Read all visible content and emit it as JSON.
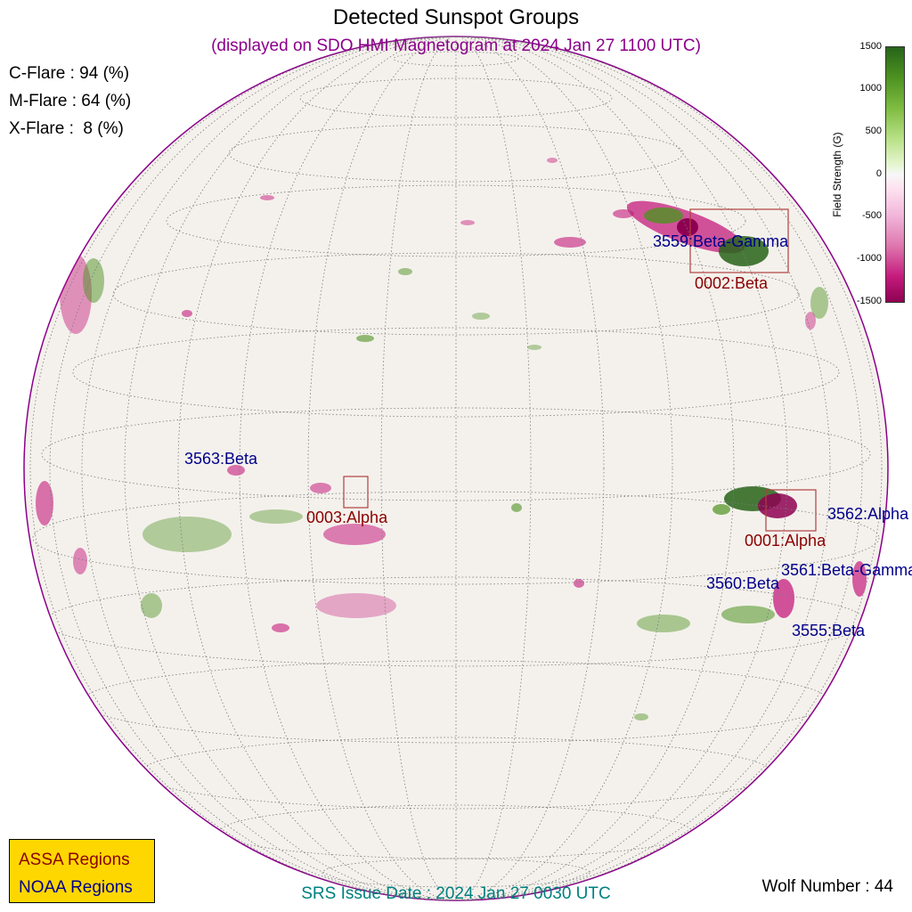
{
  "title": "Detected Sunspot Groups",
  "subtitle": "(displayed on SDO HMI Magnetogram at 2024 Jan 27 1100 UTC)",
  "flare_probabilities": [
    {
      "label": "C-Flare : 94 (%)"
    },
    {
      "label": "M-Flare : 64 (%)"
    },
    {
      "label": "X-Flare :  8 (%)"
    }
  ],
  "regions_noaa": [
    {
      "label": "3559:Beta-Gamma"
    },
    {
      "label": "3563:Beta"
    },
    {
      "label": "3562:Alpha"
    },
    {
      "label": "3561:Beta-Gamma"
    },
    {
      "label": "3560:Beta"
    },
    {
      "label": "3555:Beta"
    }
  ],
  "regions_assa": [
    {
      "label": "0002:Beta"
    },
    {
      "label": "0003:Alpha"
    },
    {
      "label": "0001:Alpha"
    }
  ],
  "colorbar": {
    "label": "Field Strength (G)",
    "ticks": [
      "1500",
      "1000",
      "500",
      "0",
      "-500",
      "-1000",
      "-1500"
    ],
    "range": [
      -1500,
      1500
    ],
    "colors": {
      "positive": "#4d9221",
      "negative": "#c51b7d",
      "neutral": "#f7f7f7"
    }
  },
  "legend": {
    "assa": "ASSA Regions",
    "noaa": "NOAA Regions",
    "background": "#ffd700"
  },
  "srs_issue": "SRS Issue Date : 2024 Jan 27 0030 UTC",
  "wolf_number": "Wolf Number : 44"
}
